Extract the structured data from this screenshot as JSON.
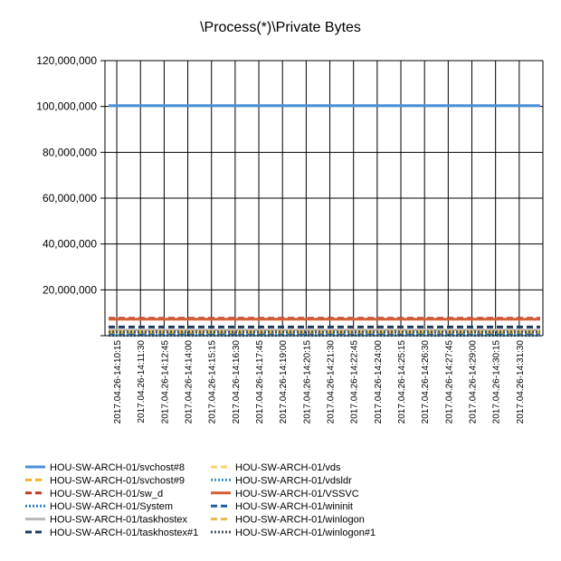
{
  "chart_data": {
    "type": "line",
    "title": "\\Process(*)\\Private Bytes",
    "xlabel": "",
    "ylabel": "",
    "ylim": [
      0,
      120000000
    ],
    "y_ticks": [
      "120,000,000",
      "100,000,000",
      "80,000,000",
      "60,000,000",
      "40,000,000",
      "20,000,000",
      ""
    ],
    "y_tick_values": [
      120000000,
      100000000,
      80000000,
      60000000,
      40000000,
      20000000,
      0
    ],
    "x_tick_labels": [
      "2017.04.26-14:10:15",
      "2017.04.26-14:11:30",
      "2017.04.26-14:12:45",
      "2017.04.26-14:14:00",
      "2017.04.26-14:15:15",
      "2017.04.26-14:16:30",
      "2017.04.26-14:17:45",
      "2017.04.26-14:19:00",
      "2017.04.26-14:20:15",
      "2017.04.26-14:21:30",
      "2017.04.26-14:22:45",
      "2017.04.26-14:24:00",
      "2017.04.26-14:25:15",
      "2017.04.26-14:26:30",
      "2017.04.26-14:27:45",
      "2017.04.26-14:29:00",
      "2017.04.26-14:30:15",
      "2017.04.26-14:31:30"
    ],
    "grid": true,
    "legend_position": "bottom",
    "series": [
      {
        "name": "HOU-SW-ARCH-01/svchost#8",
        "color": "#4a90d9",
        "dash": "solid",
        "values": [
          100400000,
          100400000,
          100400000,
          100400000,
          100400000,
          100400000,
          100400000,
          100400000,
          100400000,
          100400000,
          100400000,
          100400000,
          100400000,
          100400000,
          100400000,
          100400000,
          100400000,
          100400000
        ]
      },
      {
        "name": "HOU-SW-ARCH-01/svchost#9",
        "color": "#f0b429",
        "dash": "dashed",
        "values": [
          1300000,
          1300000,
          1300000,
          1300000,
          1300000,
          1300000,
          1300000,
          1300000,
          1300000,
          1300000,
          1300000,
          1300000,
          1300000,
          1300000,
          1300000,
          1300000,
          1300000,
          1300000
        ]
      },
      {
        "name": "HOU-SW-ARCH-01/sw_d",
        "color": "#c0392b",
        "dash": "dashed",
        "values": [
          7600000,
          7600000,
          7600000,
          7600000,
          7600000,
          7600000,
          7600000,
          7600000,
          7600000,
          7600000,
          7600000,
          7600000,
          7600000,
          7600000,
          7600000,
          7600000,
          7600000,
          7600000
        ]
      },
      {
        "name": "HOU-SW-ARCH-01/System",
        "color": "#2f7fc1",
        "dash": "dotted",
        "values": [
          150000,
          150000,
          150000,
          150000,
          150000,
          150000,
          150000,
          150000,
          150000,
          150000,
          150000,
          150000,
          150000,
          150000,
          150000,
          150000,
          150000,
          150000
        ]
      },
      {
        "name": "HOU-SW-ARCH-01/taskhostex",
        "color": "#b8b8b8",
        "dash": "solid",
        "values": [
          2500000,
          2500000,
          2500000,
          2500000,
          2500000,
          2500000,
          2500000,
          2500000,
          2500000,
          2500000,
          2500000,
          2500000,
          2500000,
          2500000,
          2500000,
          2500000,
          2500000,
          2500000
        ]
      },
      {
        "name": "HOU-SW-ARCH-01/taskhostex#1",
        "color": "#1f3a5a",
        "dash": "dashed",
        "values": [
          3800000,
          3800000,
          3800000,
          3800000,
          3800000,
          3800000,
          3800000,
          3800000,
          3800000,
          3800000,
          3800000,
          3800000,
          3800000,
          3800000,
          3800000,
          3800000,
          3800000,
          3800000
        ]
      },
      {
        "name": "HOU-SW-ARCH-01/vds",
        "color": "#f5d76e",
        "dash": "dashed",
        "values": [
          1900000,
          1900000,
          1900000,
          1900000,
          1900000,
          1900000,
          1900000,
          1900000,
          1900000,
          1900000,
          1900000,
          1900000,
          1900000,
          1900000,
          1900000,
          1900000,
          1900000,
          1900000
        ]
      },
      {
        "name": "HOU-SW-ARCH-01/vdsldr",
        "color": "#3a9bc0",
        "dash": "dotted",
        "values": [
          800000,
          800000,
          800000,
          800000,
          800000,
          800000,
          800000,
          800000,
          800000,
          800000,
          800000,
          800000,
          800000,
          800000,
          800000,
          800000,
          800000,
          800000
        ]
      },
      {
        "name": "HOU-SW-ARCH-01/VSSVC",
        "color": "#d35f35",
        "dash": "solid",
        "values": [
          7200000,
          7200000,
          7200000,
          7200000,
          7200000,
          7200000,
          7200000,
          7200000,
          7200000,
          7200000,
          7200000,
          7200000,
          7200000,
          7200000,
          7200000,
          7200000,
          7200000,
          7200000
        ]
      },
      {
        "name": "HOU-SW-ARCH-01/wininit",
        "color": "#1f5fa8",
        "dash": "dashed",
        "values": [
          1000000,
          1000000,
          1000000,
          1000000,
          1000000,
          1000000,
          1000000,
          1000000,
          1000000,
          1000000,
          1000000,
          1000000,
          1000000,
          1000000,
          1000000,
          1000000,
          1000000,
          1000000
        ]
      },
      {
        "name": "HOU-SW-ARCH-01/winlogon",
        "color": "#e8b84a",
        "dash": "dashed",
        "values": [
          1500000,
          1500000,
          1500000,
          1500000,
          1500000,
          1500000,
          1500000,
          1500000,
          1500000,
          1500000,
          1500000,
          1500000,
          1500000,
          1500000,
          1500000,
          1500000,
          1500000,
          1500000
        ]
      },
      {
        "name": "HOU-SW-ARCH-01/winlogon#1",
        "color": "#4a5560",
        "dash": "dotted",
        "values": [
          1700000,
          1700000,
          1700000,
          1700000,
          1700000,
          1700000,
          1700000,
          1700000,
          1700000,
          1700000,
          1700000,
          1700000,
          1700000,
          1700000,
          1700000,
          1700000,
          1700000,
          1700000
        ]
      }
    ]
  }
}
